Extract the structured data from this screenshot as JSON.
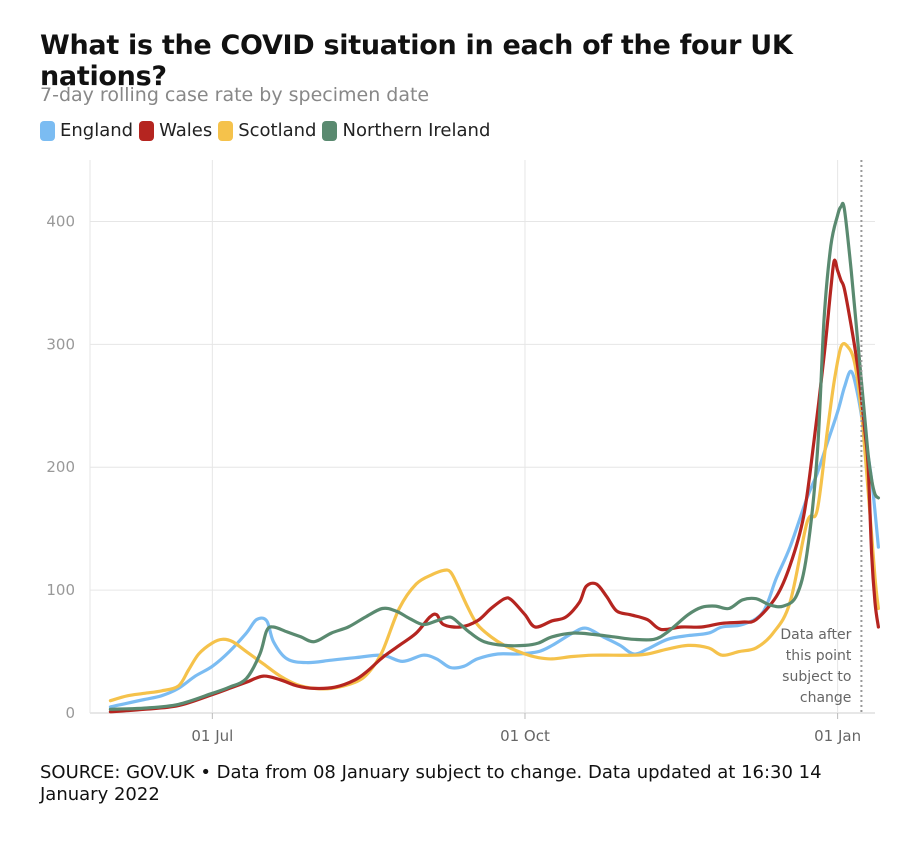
{
  "title": "What is the COVID situation in each of the four UK nations?",
  "subtitle": "7-day rolling case rate by specimen date",
  "source": "SOURCE: GOV.UK • Data from 08 January subject to change. Data updated at 16:30 14 January 2022",
  "chart_data": {
    "type": "line",
    "title": "What is the COVID situation in each of the four UK nations?",
    "subtitle": "7-day rolling case rate by specimen date",
    "xlabel": "",
    "ylabel": "",
    "ylim": [
      0,
      450
    ],
    "yticks": [
      0,
      100,
      200,
      300,
      400
    ],
    "xlim_days": [
      -36,
      195
    ],
    "xticks": [
      {
        "label": "01 Jul",
        "day": 0
      },
      {
        "label": "01 Oct",
        "day": 92
      },
      {
        "label": "01 Jan",
        "day": 184
      }
    ],
    "grid": true,
    "legend_position": "top-left",
    "annotation": {
      "lines": [
        "Data after",
        "this point",
        "subject to",
        "change"
      ],
      "day": 191
    },
    "series": [
      {
        "name": "England",
        "color": "#7bbcf2",
        "points": [
          [
            -30,
            5
          ],
          [
            -25,
            8
          ],
          [
            -20,
            11
          ],
          [
            -15,
            14
          ],
          [
            -10,
            20
          ],
          [
            -5,
            30
          ],
          [
            0,
            38
          ],
          [
            5,
            50
          ],
          [
            10,
            65
          ],
          [
            13,
            76
          ],
          [
            16,
            75
          ],
          [
            18,
            58
          ],
          [
            22,
            44
          ],
          [
            28,
            41
          ],
          [
            35,
            43
          ],
          [
            42,
            45
          ],
          [
            50,
            47
          ],
          [
            56,
            42
          ],
          [
            62,
            47
          ],
          [
            66,
            44
          ],
          [
            70,
            37
          ],
          [
            74,
            38
          ],
          [
            78,
            44
          ],
          [
            84,
            48
          ],
          [
            90,
            48
          ],
          [
            96,
            50
          ],
          [
            100,
            55
          ],
          [
            106,
            65
          ],
          [
            110,
            69
          ],
          [
            115,
            62
          ],
          [
            120,
            55
          ],
          [
            124,
            48
          ],
          [
            128,
            52
          ],
          [
            134,
            60
          ],
          [
            140,
            63
          ],
          [
            146,
            65
          ],
          [
            150,
            70
          ],
          [
            156,
            72
          ],
          [
            162,
            82
          ],
          [
            166,
            110
          ],
          [
            170,
            135
          ],
          [
            175,
            175
          ],
          [
            178,
            195
          ],
          [
            181,
            220
          ],
          [
            184,
            245
          ],
          [
            186,
            265
          ],
          [
            188,
            278
          ],
          [
            190,
            258
          ],
          [
            192,
            225
          ],
          [
            194,
            190
          ],
          [
            196,
            135
          ]
        ]
      },
      {
        "name": "Wales",
        "color": "#b52520",
        "points": [
          [
            -30,
            1
          ],
          [
            -20,
            3
          ],
          [
            -10,
            6
          ],
          [
            0,
            15
          ],
          [
            5,
            20
          ],
          [
            10,
            25
          ],
          [
            15,
            30
          ],
          [
            20,
            27
          ],
          [
            25,
            22
          ],
          [
            30,
            20
          ],
          [
            36,
            21
          ],
          [
            42,
            27
          ],
          [
            46,
            35
          ],
          [
            50,
            45
          ],
          [
            55,
            55
          ],
          [
            60,
            65
          ],
          [
            64,
            78
          ],
          [
            66,
            80
          ],
          [
            68,
            72
          ],
          [
            73,
            70
          ],
          [
            78,
            75
          ],
          [
            82,
            85
          ],
          [
            86,
            93
          ],
          [
            88,
            92
          ],
          [
            92,
            80
          ],
          [
            95,
            70
          ],
          [
            100,
            75
          ],
          [
            104,
            78
          ],
          [
            108,
            90
          ],
          [
            110,
            103
          ],
          [
            113,
            105
          ],
          [
            116,
            95
          ],
          [
            119,
            83
          ],
          [
            123,
            80
          ],
          [
            128,
            76
          ],
          [
            132,
            68
          ],
          [
            138,
            70
          ],
          [
            144,
            70
          ],
          [
            150,
            73
          ],
          [
            156,
            74
          ],
          [
            160,
            76
          ],
          [
            166,
            95
          ],
          [
            170,
            120
          ],
          [
            174,
            160
          ],
          [
            177,
            220
          ],
          [
            180,
            290
          ],
          [
            182,
            345
          ],
          [
            183,
            368
          ],
          [
            184,
            360
          ],
          [
            185,
            352
          ],
          [
            186,
            345
          ],
          [
            188,
            315
          ],
          [
            190,
            280
          ],
          [
            192,
            230
          ],
          [
            193,
            200
          ],
          [
            194,
            130
          ],
          [
            195,
            90
          ],
          [
            196,
            70
          ]
        ]
      },
      {
        "name": "Scotland",
        "color": "#f5c24b",
        "points": [
          [
            -30,
            10
          ],
          [
            -25,
            14
          ],
          [
            -20,
            16
          ],
          [
            -15,
            18
          ],
          [
            -10,
            22
          ],
          [
            -7,
            35
          ],
          [
            -4,
            48
          ],
          [
            0,
            57
          ],
          [
            3,
            60
          ],
          [
            6,
            58
          ],
          [
            10,
            50
          ],
          [
            15,
            40
          ],
          [
            20,
            30
          ],
          [
            25,
            23
          ],
          [
            30,
            20
          ],
          [
            35,
            20
          ],
          [
            42,
            25
          ],
          [
            46,
            33
          ],
          [
            50,
            50
          ],
          [
            55,
            85
          ],
          [
            60,
            105
          ],
          [
            65,
            113
          ],
          [
            68,
            116
          ],
          [
            70,
            115
          ],
          [
            72,
            105
          ],
          [
            75,
            87
          ],
          [
            78,
            72
          ],
          [
            82,
            62
          ],
          [
            86,
            55
          ],
          [
            92,
            48
          ],
          [
            96,
            45
          ],
          [
            100,
            44
          ],
          [
            106,
            46
          ],
          [
            112,
            47
          ],
          [
            118,
            47
          ],
          [
            124,
            47
          ],
          [
            128,
            48
          ],
          [
            134,
            52
          ],
          [
            140,
            55
          ],
          [
            146,
            53
          ],
          [
            150,
            47
          ],
          [
            155,
            50
          ],
          [
            160,
            53
          ],
          [
            165,
            65
          ],
          [
            170,
            90
          ],
          [
            175,
            155
          ],
          [
            178,
            165
          ],
          [
            181,
            230
          ],
          [
            183,
            270
          ],
          [
            185,
            298
          ],
          [
            187,
            298
          ],
          [
            189,
            285
          ],
          [
            191,
            245
          ],
          [
            193,
            180
          ],
          [
            195,
            110
          ],
          [
            196,
            85
          ]
        ]
      },
      {
        "name": "Northern Ireland",
        "color": "#5a8a70",
        "points": [
          [
            -30,
            3
          ],
          [
            -20,
            4
          ],
          [
            -10,
            7
          ],
          [
            0,
            16
          ],
          [
            5,
            21
          ],
          [
            10,
            28
          ],
          [
            14,
            48
          ],
          [
            16,
            67
          ],
          [
            18,
            70
          ],
          [
            22,
            66
          ],
          [
            26,
            62
          ],
          [
            30,
            58
          ],
          [
            35,
            65
          ],
          [
            40,
            70
          ],
          [
            45,
            78
          ],
          [
            50,
            85
          ],
          [
            54,
            83
          ],
          [
            58,
            77
          ],
          [
            62,
            72
          ],
          [
            66,
            75
          ],
          [
            70,
            78
          ],
          [
            73,
            72
          ],
          [
            76,
            65
          ],
          [
            80,
            58
          ],
          [
            86,
            55
          ],
          [
            92,
            55
          ],
          [
            96,
            57
          ],
          [
            100,
            62
          ],
          [
            106,
            65
          ],
          [
            112,
            64
          ],
          [
            118,
            62
          ],
          [
            124,
            60
          ],
          [
            130,
            60
          ],
          [
            134,
            66
          ],
          [
            140,
            80
          ],
          [
            144,
            86
          ],
          [
            148,
            87
          ],
          [
            152,
            85
          ],
          [
            156,
            92
          ],
          [
            160,
            93
          ],
          [
            164,
            88
          ],
          [
            168,
            87
          ],
          [
            172,
            96
          ],
          [
            175,
            130
          ],
          [
            178,
            210
          ],
          [
            180,
            320
          ],
          [
            182,
            380
          ],
          [
            184,
            405
          ],
          [
            185,
            412
          ],
          [
            186,
            410
          ],
          [
            188,
            360
          ],
          [
            190,
            300
          ],
          [
            192,
            240
          ],
          [
            193,
            210
          ],
          [
            194,
            190
          ],
          [
            195,
            178
          ],
          [
            196,
            175
          ]
        ]
      }
    ]
  }
}
